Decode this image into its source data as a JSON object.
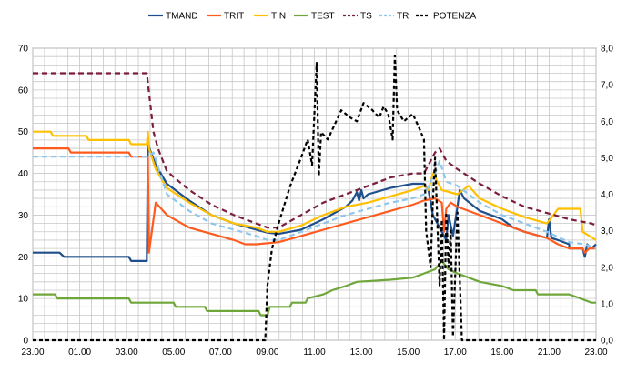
{
  "chart_data": {
    "type": "line",
    "title": "",
    "xlabel": "",
    "ylabel": "",
    "y2label": "",
    "x_ticks": [
      "23.00",
      "01.00",
      "03.00",
      "05.00",
      "07.00",
      "09.00",
      "11.00",
      "13.00",
      "15.00",
      "17.00",
      "19.00",
      "21.00",
      "23.00"
    ],
    "x_range_hours": [
      0,
      24
    ],
    "ylim": [
      0,
      70
    ],
    "y_ticks": [
      "0",
      "10",
      "20",
      "30",
      "40",
      "50",
      "60",
      "70"
    ],
    "y2lim": [
      0,
      8
    ],
    "y2_ticks": [
      "0,0",
      "1,0",
      "2,0",
      "3,0",
      "4,0",
      "5,0",
      "6,0",
      "7,0",
      "8,0"
    ],
    "grid": true,
    "legend_position": "top",
    "series": [
      {
        "name": "TMAND",
        "color": "#1F4E8C",
        "dash": "solid",
        "axis": "left",
        "points": [
          [
            0,
            21
          ],
          [
            1.2,
            21
          ],
          [
            1.4,
            20
          ],
          [
            4.3,
            20
          ],
          [
            4.4,
            19
          ],
          [
            5.1,
            19
          ],
          [
            5.15,
            47
          ],
          [
            5.5,
            42
          ],
          [
            6,
            37.5
          ],
          [
            7,
            33.5
          ],
          [
            8,
            30
          ],
          [
            9,
            28
          ],
          [
            10,
            26.5
          ],
          [
            10.5,
            25.8
          ],
          [
            11,
            25.5
          ],
          [
            12,
            26.5
          ],
          [
            13,
            29
          ],
          [
            14,
            32
          ],
          [
            14.3,
            33.5
          ],
          [
            14.5,
            35.5
          ],
          [
            14.6,
            33.5
          ],
          [
            14.7,
            36
          ],
          [
            14.8,
            34
          ],
          [
            15,
            35
          ],
          [
            16,
            36.5
          ],
          [
            17,
            37.5
          ],
          [
            17.5,
            37.5
          ],
          [
            17.7,
            36
          ],
          [
            17.9,
            30
          ],
          [
            18.2,
            27
          ],
          [
            18.5,
            24
          ],
          [
            18.6,
            30
          ],
          [
            18.8,
            25
          ],
          [
            19,
            32
          ],
          [
            19.1,
            36
          ],
          [
            19.3,
            34
          ],
          [
            20,
            31
          ],
          [
            21,
            29
          ],
          [
            21.5,
            27
          ],
          [
            22,
            26
          ],
          [
            23,
            24.5
          ],
          [
            23.1,
            29
          ],
          [
            23.2,
            24.5
          ],
          [
            23.5,
            24
          ],
          [
            24,
            23
          ],
          [
            24,
            22
          ],
          [
            24.6,
            22
          ],
          [
            24.7,
            20
          ],
          [
            24.8,
            23
          ],
          [
            25,
            22
          ],
          [
            25.2,
            23
          ]
        ]
      },
      {
        "name": "TRIT",
        "color": "#FF5B1F",
        "dash": "solid",
        "axis": "left",
        "points": [
          [
            0,
            46
          ],
          [
            1.6,
            46
          ],
          [
            1.7,
            45
          ],
          [
            4.3,
            45
          ],
          [
            4.4,
            44
          ],
          [
            5.15,
            44
          ],
          [
            5.2,
            21
          ],
          [
            5.5,
            33
          ],
          [
            6,
            30
          ],
          [
            7,
            27
          ],
          [
            8,
            25.5
          ],
          [
            9,
            24
          ],
          [
            9.5,
            23
          ],
          [
            10,
            23
          ],
          [
            11,
            23.5
          ],
          [
            12,
            25
          ],
          [
            13,
            26.5
          ],
          [
            14,
            28
          ],
          [
            15,
            29.5
          ],
          [
            16,
            31
          ],
          [
            17,
            32.5
          ],
          [
            17.5,
            33.5
          ],
          [
            18,
            34
          ],
          [
            18.3,
            33
          ],
          [
            18.4,
            26
          ],
          [
            18.5,
            31.5
          ],
          [
            18.7,
            33
          ],
          [
            19,
            32
          ],
          [
            20,
            30
          ],
          [
            21,
            28
          ],
          [
            22,
            26
          ],
          [
            23,
            24.5
          ],
          [
            23.5,
            23
          ],
          [
            24,
            22
          ],
          [
            24.6,
            22
          ],
          [
            24.7,
            21
          ],
          [
            24.9,
            22
          ],
          [
            25.2,
            22
          ]
        ]
      },
      {
        "name": "TIN",
        "color": "#FFC000",
        "dash": "solid",
        "axis": "left",
        "points": [
          [
            0,
            50
          ],
          [
            0.8,
            50
          ],
          [
            0.9,
            49
          ],
          [
            2.4,
            49
          ],
          [
            2.5,
            48
          ],
          [
            4.3,
            48
          ],
          [
            4.4,
            47
          ],
          [
            5.1,
            47
          ],
          [
            5.15,
            50
          ],
          [
            5.2,
            46
          ],
          [
            5.5,
            41
          ],
          [
            6,
            36.5
          ],
          [
            7,
            33
          ],
          [
            8,
            30
          ],
          [
            9,
            28
          ],
          [
            10,
            27
          ],
          [
            10.5,
            26
          ],
          [
            11,
            26
          ],
          [
            12,
            27.5
          ],
          [
            13,
            30
          ],
          [
            14,
            32
          ],
          [
            15,
            33
          ],
          [
            16,
            34.5
          ],
          [
            17,
            36
          ],
          [
            17.5,
            37
          ],
          [
            17.7,
            36
          ],
          [
            17.9,
            40
          ],
          [
            18.1,
            38
          ],
          [
            18.3,
            36
          ],
          [
            19,
            35
          ],
          [
            19.5,
            37
          ],
          [
            20,
            34
          ],
          [
            21,
            31.5
          ],
          [
            22,
            29.5
          ],
          [
            23,
            28
          ],
          [
            23.3,
            30
          ],
          [
            23.5,
            31.5
          ],
          [
            24.5,
            31.5
          ],
          [
            24.6,
            26
          ],
          [
            25.2,
            24
          ]
        ]
      },
      {
        "name": "TEST",
        "color": "#6FA63A",
        "dash": "solid",
        "axis": "left",
        "points": [
          [
            0,
            11
          ],
          [
            1,
            11
          ],
          [
            1.1,
            10
          ],
          [
            4.3,
            10
          ],
          [
            4.4,
            9
          ],
          [
            6.3,
            9
          ],
          [
            6.4,
            8
          ],
          [
            7.7,
            8
          ],
          [
            7.8,
            7
          ],
          [
            10.1,
            7
          ],
          [
            10.2,
            6
          ],
          [
            10.5,
            6
          ],
          [
            10.6,
            8
          ],
          [
            11.5,
            8
          ],
          [
            11.6,
            9
          ],
          [
            12.2,
            9
          ],
          [
            12.3,
            10
          ],
          [
            13,
            11
          ],
          [
            13.4,
            12
          ],
          [
            14,
            13
          ],
          [
            14.5,
            14
          ],
          [
            16,
            14.5
          ],
          [
            17,
            15
          ],
          [
            17.5,
            16
          ],
          [
            18,
            17
          ],
          [
            18.3,
            19
          ],
          [
            18.6,
            17
          ],
          [
            19,
            16
          ],
          [
            20,
            14
          ],
          [
            21,
            13
          ],
          [
            21.5,
            12
          ],
          [
            22.5,
            12
          ],
          [
            22.6,
            11
          ],
          [
            24,
            11
          ],
          [
            24.5,
            10
          ],
          [
            25,
            9
          ],
          [
            25.2,
            9
          ]
        ]
      },
      {
        "name": "TS",
        "color": "#7B1E3C",
        "dash": "6,4",
        "axis": "left",
        "points": [
          [
            0,
            64
          ],
          [
            5.1,
            64
          ],
          [
            5.4,
            50
          ],
          [
            5.6,
            46
          ],
          [
            6,
            40.5
          ],
          [
            7,
            36
          ],
          [
            8,
            32.5
          ],
          [
            9,
            30
          ],
          [
            10,
            28
          ],
          [
            10.5,
            27
          ],
          [
            11,
            27
          ],
          [
            12,
            30
          ],
          [
            13,
            33
          ],
          [
            14,
            35
          ],
          [
            15,
            37
          ],
          [
            16,
            39
          ],
          [
            17,
            40
          ],
          [
            17.5,
            40
          ],
          [
            18,
            45
          ],
          [
            18.2,
            46
          ],
          [
            18.5,
            43
          ],
          [
            19,
            41
          ],
          [
            20,
            37.5
          ],
          [
            21,
            34.5
          ],
          [
            22,
            32
          ],
          [
            23,
            30.5
          ],
          [
            24,
            29
          ],
          [
            25,
            28
          ],
          [
            25.2,
            27.5
          ]
        ]
      },
      {
        "name": "TR",
        "color": "#8DC6EE",
        "dash": "6,4",
        "axis": "left",
        "points": [
          [
            0,
            44
          ],
          [
            5.1,
            44
          ],
          [
            5.4,
            45
          ],
          [
            6,
            35
          ],
          [
            7,
            31
          ],
          [
            8,
            28
          ],
          [
            9,
            26.5
          ],
          [
            10,
            25
          ],
          [
            10.5,
            24
          ],
          [
            11,
            24
          ],
          [
            12,
            26
          ],
          [
            13,
            28
          ],
          [
            14,
            30
          ],
          [
            15,
            31.5
          ],
          [
            16,
            33
          ],
          [
            17,
            34
          ],
          [
            17.5,
            35
          ],
          [
            18,
            40
          ],
          [
            18.2,
            43
          ],
          [
            18.5,
            38
          ],
          [
            19,
            37
          ],
          [
            20,
            33
          ],
          [
            21,
            30
          ],
          [
            22,
            28
          ],
          [
            23,
            26
          ],
          [
            24,
            23.5
          ],
          [
            24.7,
            23
          ],
          [
            25.2,
            22
          ]
        ]
      },
      {
        "name": "POTENZA",
        "color": "#000000",
        "dash": "4,3",
        "axis": "right",
        "points": [
          [
            0,
            0
          ],
          [
            10.4,
            0
          ],
          [
            10.5,
            1.5
          ],
          [
            10.7,
            2.5
          ],
          [
            11,
            3.2
          ],
          [
            11.5,
            4.2
          ],
          [
            12,
            5
          ],
          [
            12.3,
            5.5
          ],
          [
            12.5,
            4.8
          ],
          [
            12.7,
            7.6
          ],
          [
            12.8,
            4.5
          ],
          [
            12.9,
            5.7
          ],
          [
            13.2,
            5.5
          ],
          [
            13.5,
            5.9
          ],
          [
            13.8,
            6.3
          ],
          [
            14.2,
            6.1
          ],
          [
            14.5,
            6
          ],
          [
            14.8,
            6.5
          ],
          [
            15.2,
            6.3
          ],
          [
            15.5,
            6.1
          ],
          [
            15.7,
            6.4
          ],
          [
            15.9,
            6.2
          ],
          [
            16.1,
            5.5
          ],
          [
            16.2,
            7.8
          ],
          [
            16.3,
            6.3
          ],
          [
            16.6,
            6
          ],
          [
            17,
            6.2
          ],
          [
            17.3,
            5.8
          ],
          [
            17.5,
            5.5
          ],
          [
            17.6,
            3
          ],
          [
            17.8,
            2
          ],
          [
            17.9,
            3.8
          ],
          [
            18,
            5
          ],
          [
            18.2,
            1.5
          ],
          [
            18.3,
            3.3
          ],
          [
            18.4,
            0
          ],
          [
            18.5,
            3.5
          ],
          [
            18.6,
            2
          ],
          [
            18.7,
            3
          ],
          [
            18.8,
            0.1
          ],
          [
            19,
            3.5
          ],
          [
            19.2,
            0
          ],
          [
            25.2,
            0
          ]
        ]
      }
    ]
  }
}
